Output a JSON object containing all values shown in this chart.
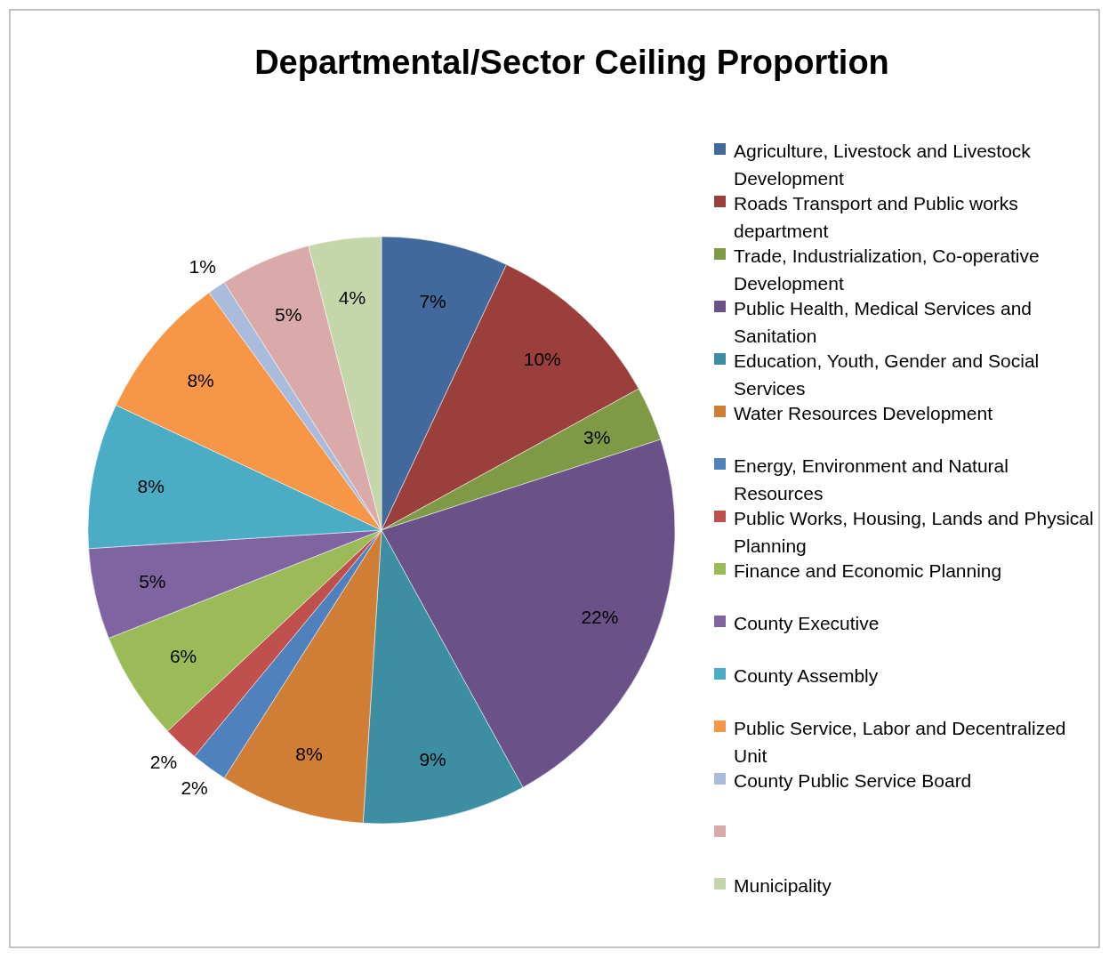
{
  "chart_data": {
    "type": "pie",
    "title": "Departmental/Sector Ceiling Proportion",
    "categories": [
      "Agriculture, Livestock and Livestock Development",
      "Roads Transport and Public works department",
      "Trade, Industrialization, Co-operative Development",
      "Public Health, Medical Services and Sanitation",
      "Education, Youth, Gender and Social Services",
      "Water Resources Development",
      "Energy, Environment and Natural Resources",
      "Public Works, Housing, Lands and Physical Planning",
      "Finance and Economic Planning",
      "County Executive",
      "County Assembly",
      "Public Service, Labor and Decentralized Unit",
      "County Public Service Board",
      null,
      "Municipality"
    ],
    "values": [
      7,
      10,
      3,
      22,
      9,
      8,
      2,
      2,
      6,
      5,
      8,
      8,
      1,
      5,
      4
    ],
    "colors": [
      "#41699c",
      "#9b3f3d",
      "#7e9a47",
      "#6a5187",
      "#3d8ea2",
      "#d07d35",
      "#4f81bd",
      "#c0504d",
      "#9bbb59",
      "#8064a2",
      "#4bacc6",
      "#f79646",
      "#a9bcdc",
      "#d9aaa9",
      "#c6d6ab"
    ],
    "value_labels": [
      "7%",
      "10%",
      "3%",
      "22%",
      "9%",
      "8%",
      "2%",
      "2%",
      "6%",
      "5%",
      "8%",
      "8%",
      "1%",
      "5%",
      "4%"
    ],
    "legend": "right"
  }
}
